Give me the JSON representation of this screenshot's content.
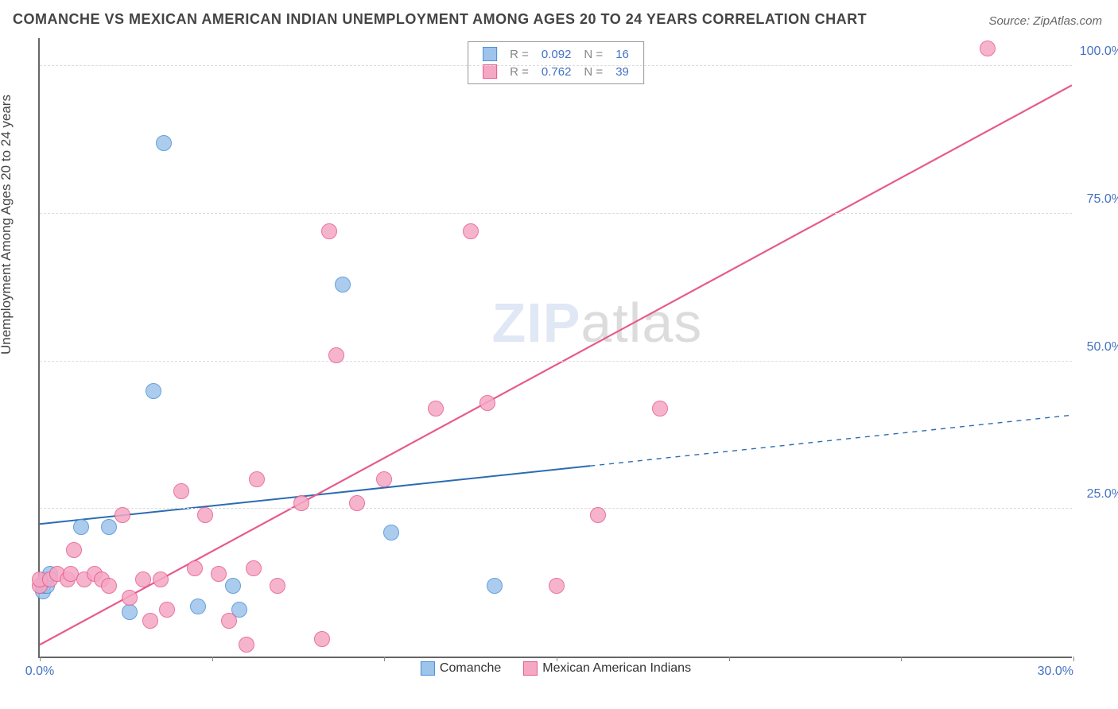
{
  "title": "COMANCHE VS MEXICAN AMERICAN INDIAN UNEMPLOYMENT AMONG AGES 20 TO 24 YEARS CORRELATION CHART",
  "source": "Source: ZipAtlas.com",
  "ylabel": "Unemployment Among Ages 20 to 24 years",
  "watermark_a": "ZIP",
  "watermark_b": "atlas",
  "chart": {
    "type": "scatter",
    "xlim": [
      0,
      30
    ],
    "ylim": [
      0,
      105
    ],
    "x_ticks": [
      0,
      5,
      10,
      15,
      20,
      25,
      30
    ],
    "x_tick_labels": {
      "0": "0.0%",
      "30": "30.0%"
    },
    "y_ticks": [
      25,
      50,
      75,
      100
    ],
    "y_tick_labels": {
      "25": "25.0%",
      "50": "50.0%",
      "75": "75.0%",
      "100": "100.0%"
    },
    "grid_color": "#dddddd",
    "axis_color": "#666666",
    "background_color": "#ffffff",
    "tick_label_color": "#4472c4",
    "tick_label_fontsize": 16,
    "title_fontsize": 18,
    "title_color": "#444444",
    "ylabel_fontsize": 17,
    "marker_radius": 10,
    "marker_border_width": 1.5,
    "marker_fill_opacity": 0.35
  },
  "series": [
    {
      "name": "Comanche",
      "color_border": "#4a90d9",
      "color_fill": "#9ec4eb",
      "R": "0.092",
      "N": "16",
      "trend": {
        "x1": 0,
        "y1": 22.5,
        "x2": 30,
        "y2": 41,
        "xsolid": 16,
        "color": "#2b6cb0",
        "width": 2
      },
      "points": [
        [
          0.1,
          11
        ],
        [
          0.1,
          12
        ],
        [
          0.2,
          12
        ],
        [
          0.15,
          13
        ],
        [
          0.3,
          14
        ],
        [
          1.2,
          22
        ],
        [
          2.0,
          22
        ],
        [
          2.6,
          7.5
        ],
        [
          3.3,
          45
        ],
        [
          3.6,
          87
        ],
        [
          4.6,
          8.5
        ],
        [
          5.6,
          12
        ],
        [
          5.8,
          8
        ],
        [
          8.8,
          63
        ],
        [
          10.2,
          21
        ],
        [
          13.2,
          12
        ]
      ]
    },
    {
      "name": "Mexican American Indians",
      "color_border": "#e75a8d",
      "color_fill": "#f5a8c4",
      "R": "0.762",
      "N": "39",
      "trend": {
        "x1": 0,
        "y1": 2,
        "x2": 30,
        "y2": 97,
        "xsolid": 30,
        "color": "#e75a8d",
        "width": 2.2
      },
      "points": [
        [
          0.0,
          12
        ],
        [
          0.0,
          13
        ],
        [
          0.3,
          13
        ],
        [
          0.5,
          14
        ],
        [
          0.8,
          13
        ],
        [
          0.9,
          14
        ],
        [
          1.0,
          18
        ],
        [
          1.3,
          13
        ],
        [
          1.6,
          14
        ],
        [
          1.8,
          13
        ],
        [
          2.0,
          12
        ],
        [
          2.4,
          24
        ],
        [
          2.6,
          10
        ],
        [
          3.0,
          13
        ],
        [
          3.2,
          6
        ],
        [
          3.5,
          13
        ],
        [
          3.7,
          8
        ],
        [
          4.1,
          28
        ],
        [
          4.5,
          15
        ],
        [
          4.8,
          24
        ],
        [
          5.2,
          14
        ],
        [
          5.5,
          6
        ],
        [
          6.0,
          2
        ],
        [
          6.2,
          15
        ],
        [
          6.3,
          30
        ],
        [
          6.9,
          12
        ],
        [
          7.6,
          26
        ],
        [
          8.2,
          3
        ],
        [
          8.4,
          72
        ],
        [
          8.6,
          51
        ],
        [
          9.2,
          26
        ],
        [
          10.0,
          30
        ],
        [
          11.5,
          42
        ],
        [
          12.5,
          72
        ],
        [
          13.0,
          43
        ],
        [
          15.0,
          12
        ],
        [
          16.2,
          24
        ],
        [
          18.0,
          42
        ],
        [
          27.5,
          103
        ]
      ]
    }
  ]
}
